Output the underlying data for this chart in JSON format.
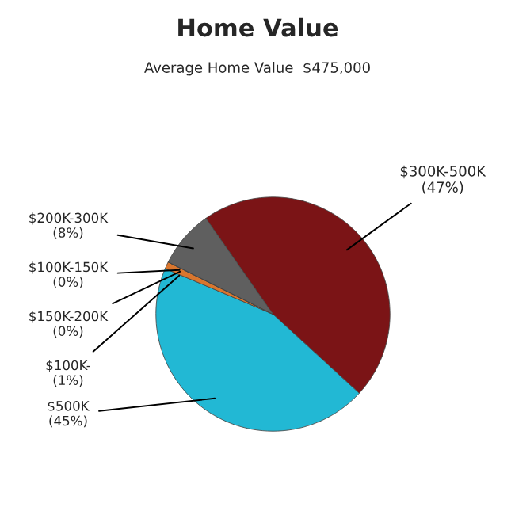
{
  "chart_data": {
    "type": "pie",
    "title": "Home Value",
    "subtitle": "Average Home Value  $475,000",
    "categories": [
      "$300K-500K",
      "$500K",
      "$100K-",
      "$150K-200K",
      "$100K-150K",
      "$200K-300K"
    ],
    "values": [
      47,
      45,
      1,
      0,
      0,
      8
    ],
    "value_labels": [
      "(47%)",
      "(45%)",
      "(1%)",
      "(0%)",
      "(0%)",
      "(8%)"
    ],
    "colors": [
      "#7b1416",
      "#22b8d4",
      "#d9762e",
      "#9a9a3a",
      "#c0c0c0",
      "#5f5f5f"
    ]
  }
}
